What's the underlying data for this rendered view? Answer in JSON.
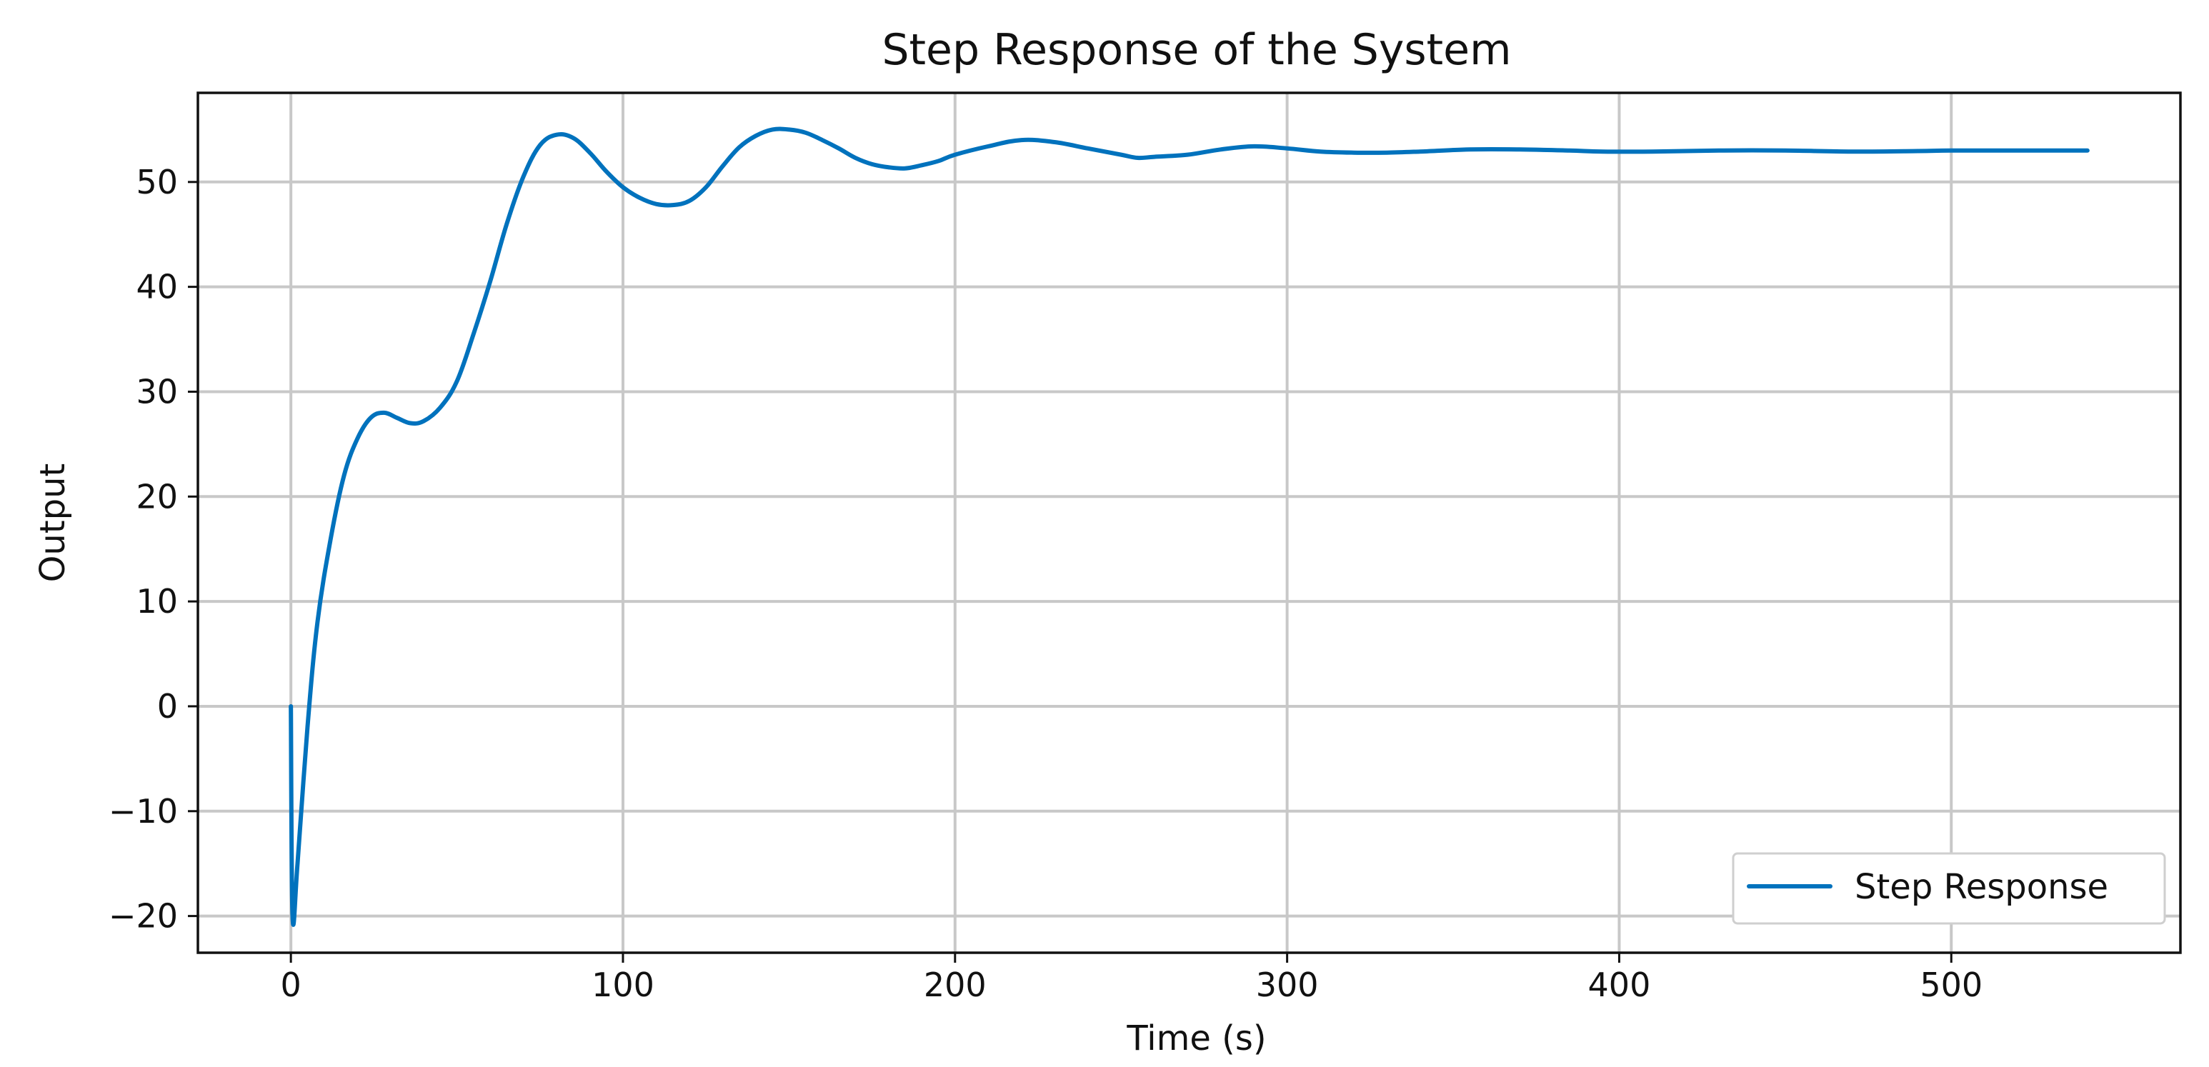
{
  "chart_data": {
    "type": "line",
    "title": "Step Response of the System",
    "xlabel": "Time (s)",
    "ylabel": "Output",
    "xlim": [
      -28,
      569
    ],
    "ylim": [
      -23.5,
      58.5
    ],
    "xticks": [
      0,
      100,
      200,
      300,
      400,
      500
    ],
    "yticks": [
      -20,
      -10,
      0,
      10,
      20,
      30,
      40,
      50
    ],
    "xtick_labels": [
      "0",
      "100",
      "200",
      "300",
      "400",
      "500"
    ],
    "ytick_labels": [
      "−20",
      "−10",
      "0",
      "10",
      "20",
      "30",
      "40",
      "50"
    ],
    "grid": true,
    "legend": {
      "position": "lower-right",
      "entries": [
        "Step Response"
      ]
    },
    "colors": {
      "line": "#0072bd"
    },
    "series": [
      {
        "name": "Step Response",
        "x": [
          0,
          0.5,
          2,
          5,
          8,
          12,
          16,
          20,
          24,
          28,
          32,
          36,
          40,
          45,
          50,
          55,
          60,
          65,
          70,
          75,
          80,
          85,
          90,
          95,
          100,
          105,
          110,
          115,
          120,
          125,
          130,
          135,
          140,
          145,
          150,
          155,
          160,
          165,
          170,
          175,
          180,
          185,
          190,
          195,
          200,
          210,
          220,
          230,
          240,
          250,
          255,
          260,
          270,
          280,
          290,
          300,
          310,
          320,
          330,
          340,
          355,
          370,
          385,
          395,
          410,
          430,
          450,
          470,
          490,
          500,
          520,
          541
        ],
        "y": [
          0,
          -20,
          -15,
          -2,
          8,
          16,
          22,
          25.5,
          27.5,
          28,
          27.5,
          27,
          27.2,
          28.5,
          31,
          35.5,
          40.5,
          46,
          50.5,
          53.5,
          54.5,
          54.2,
          52.8,
          51,
          49.5,
          48.5,
          47.9,
          47.8,
          48.2,
          49.5,
          51.5,
          53.3,
          54.4,
          55,
          55,
          54.7,
          54,
          53.2,
          52.3,
          51.7,
          51.4,
          51.3,
          51.6,
          52,
          52.6,
          53.4,
          54,
          53.8,
          53.2,
          52.6,
          52.3,
          52.4,
          52.6,
          53.1,
          53.4,
          53.2,
          52.9,
          52.8,
          52.8,
          52.9,
          53.1,
          53.1,
          53,
          52.9,
          52.9,
          53,
          53,
          52.9,
          52.95,
          53,
          53,
          53
        ]
      }
    ]
  }
}
